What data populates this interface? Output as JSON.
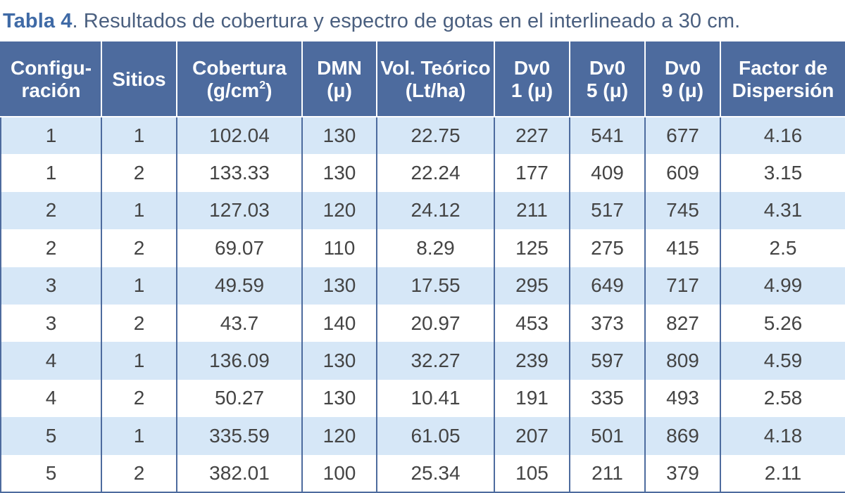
{
  "caption": {
    "label": "Tabla 4",
    "text": ". Resultados de cobertura y espectro de gotas en el interlineado a 30 cm."
  },
  "colors": {
    "header_bg": "#4d6b9e",
    "stripe": "#d6e7f7",
    "caption_label": "#3f6aa6"
  },
  "table": {
    "headers": [
      {
        "line1": "Configu-",
        "line2": "ración"
      },
      {
        "line1": "Sitios",
        "line2": ""
      },
      {
        "line1": "Cobertura",
        "line2": "(g/cm",
        "sup": "2",
        "tail": ")"
      },
      {
        "line1": "DMN",
        "line2": "(μ)"
      },
      {
        "line1": "Vol. Teórico",
        "line2": "(Lt/ha)"
      },
      {
        "line1": "Dv0",
        "line2": "1 (μ)"
      },
      {
        "line1": "Dv0",
        "line2": "5 (μ)"
      },
      {
        "line1": "Dv0",
        "line2": "9 (μ)"
      },
      {
        "line1": "Factor de",
        "line2": "Dispersión"
      }
    ],
    "rows": [
      [
        "1",
        "1",
        "102.04",
        "130",
        "22.75",
        "227",
        "541",
        "677",
        "4.16"
      ],
      [
        "1",
        "2",
        "133.33",
        "130",
        "22.24",
        "177",
        "409",
        "609",
        "3.15"
      ],
      [
        "2",
        "1",
        "127.03",
        "120",
        "24.12",
        "211",
        "517",
        "745",
        "4.31"
      ],
      [
        "2",
        "2",
        "69.07",
        "110",
        "8.29",
        "125",
        "275",
        "415",
        "2.5"
      ],
      [
        "3",
        "1",
        "49.59",
        "130",
        "17.55",
        "295",
        "649",
        "717",
        "4.99"
      ],
      [
        "3",
        "2",
        "43.7",
        "140",
        "20.97",
        "453",
        "373",
        "827",
        "5.26"
      ],
      [
        "4",
        "1",
        "136.09",
        "130",
        "32.27",
        "239",
        "597",
        "809",
        "4.59"
      ],
      [
        "4",
        "2",
        "50.27",
        "130",
        "10.41",
        "191",
        "335",
        "493",
        "2.58"
      ],
      [
        "5",
        "1",
        "335.59",
        "120",
        "61.05",
        "207",
        "501",
        "869",
        "4.18"
      ],
      [
        "5",
        "2",
        "382.01",
        "100",
        "25.34",
        "105",
        "211",
        "379",
        "2.11"
      ]
    ]
  }
}
